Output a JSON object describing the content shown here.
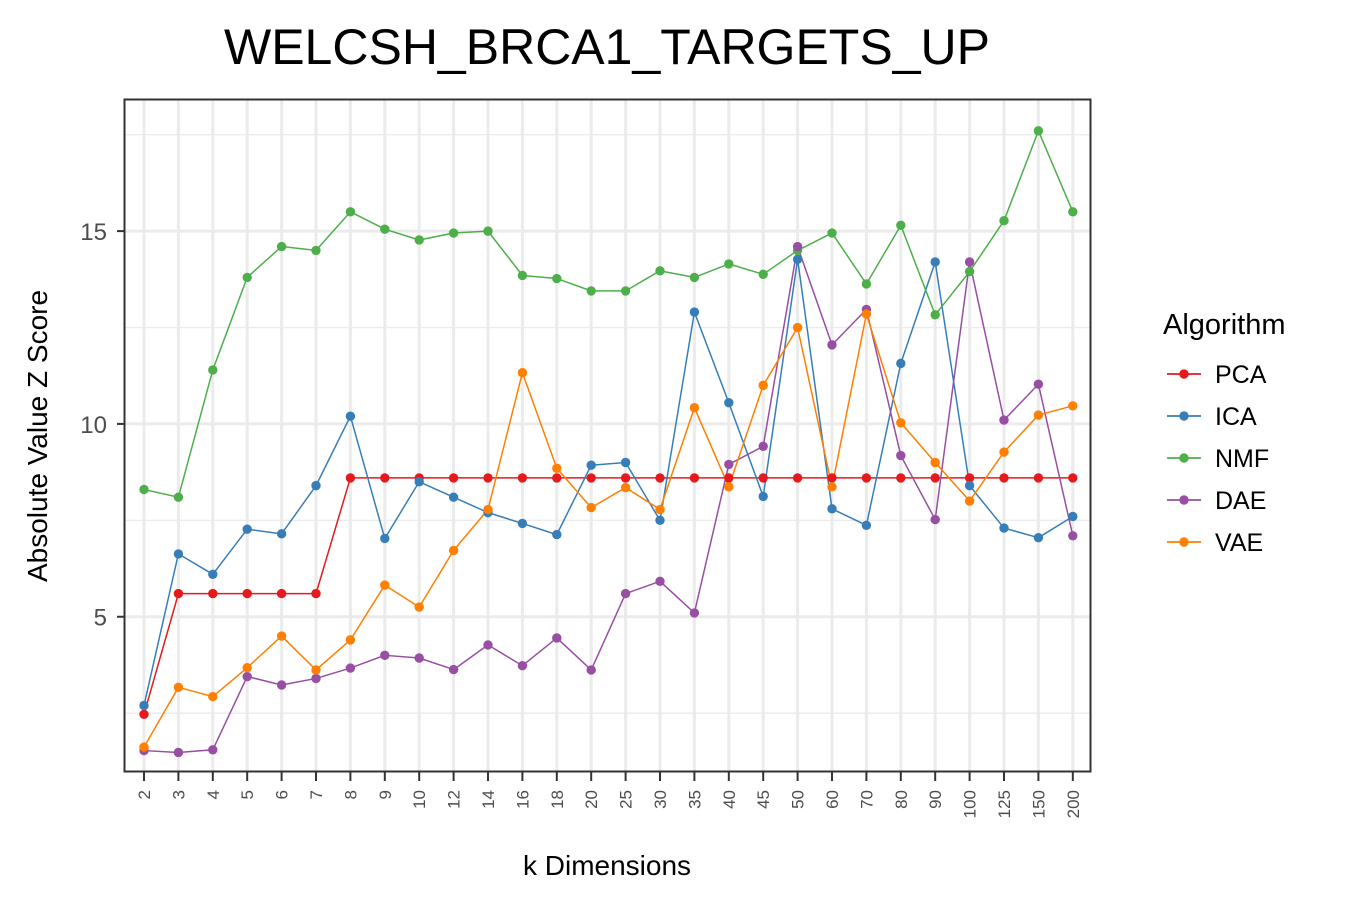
{
  "chart_data": {
    "type": "line",
    "title": "WELCSH_BRCA1_TARGETS_UP",
    "xlabel": "k Dimensions",
    "ylabel": "Absolute Value Z Score",
    "categories": [
      "2",
      "3",
      "4",
      "5",
      "6",
      "7",
      "8",
      "9",
      "10",
      "12",
      "14",
      "16",
      "18",
      "20",
      "25",
      "30",
      "35",
      "40",
      "45",
      "50",
      "60",
      "70",
      "80",
      "90",
      "100",
      "125",
      "150",
      "200"
    ],
    "ylim": [
      1.0,
      18.4
    ],
    "yticks": [
      5,
      10,
      15
    ],
    "grid": true,
    "legend": {
      "title": "Algorithm",
      "placement": "right"
    },
    "series": [
      {
        "name": "PCA",
        "color": "#e41a1c",
        "values": [
          2.47,
          5.6,
          5.6,
          5.6,
          5.6,
          5.6,
          8.6,
          8.6,
          8.6,
          8.6,
          8.6,
          8.6,
          8.6,
          8.6,
          8.6,
          8.6,
          8.6,
          8.6,
          8.6,
          8.6,
          8.6,
          8.6,
          8.6,
          8.6,
          8.6,
          8.6,
          8.6,
          8.6
        ]
      },
      {
        "name": "ICA",
        "color": "#377eb8",
        "values": [
          2.7,
          6.63,
          6.1,
          7.27,
          7.15,
          8.4,
          10.2,
          7.03,
          8.5,
          8.1,
          7.7,
          7.42,
          7.13,
          8.93,
          9.0,
          7.5,
          12.9,
          10.55,
          8.12,
          14.27,
          7.8,
          7.37,
          11.57,
          14.2,
          8.4,
          7.3,
          7.05,
          7.6
        ]
      },
      {
        "name": "NMF",
        "color": "#4daf4a",
        "values": [
          8.3,
          8.1,
          11.4,
          13.8,
          14.6,
          14.5,
          15.5,
          15.05,
          14.77,
          14.95,
          15.0,
          13.85,
          13.77,
          13.45,
          13.45,
          13.97,
          13.8,
          14.15,
          13.88,
          14.5,
          14.95,
          13.63,
          15.15,
          12.83,
          13.95,
          15.27,
          17.6,
          15.5
        ]
      },
      {
        "name": "DAE",
        "color": "#984ea3",
        "values": [
          1.53,
          1.48,
          1.55,
          3.45,
          3.23,
          3.4,
          3.67,
          4.0,
          3.93,
          3.63,
          4.27,
          3.73,
          4.45,
          3.62,
          5.6,
          5.92,
          5.1,
          8.95,
          9.42,
          14.6,
          12.05,
          12.97,
          9.18,
          7.52,
          14.2,
          10.1,
          11.03,
          7.1
        ]
      },
      {
        "name": "VAE",
        "color": "#ff7f00",
        "values": [
          1.62,
          3.17,
          2.93,
          3.68,
          4.5,
          3.62,
          4.4,
          5.82,
          5.25,
          6.72,
          7.78,
          11.33,
          8.85,
          7.83,
          8.35,
          7.78,
          10.42,
          8.37,
          11.0,
          12.5,
          8.37,
          12.85,
          10.03,
          9.0,
          8.0,
          9.27,
          10.23,
          10.47
        ]
      }
    ]
  }
}
